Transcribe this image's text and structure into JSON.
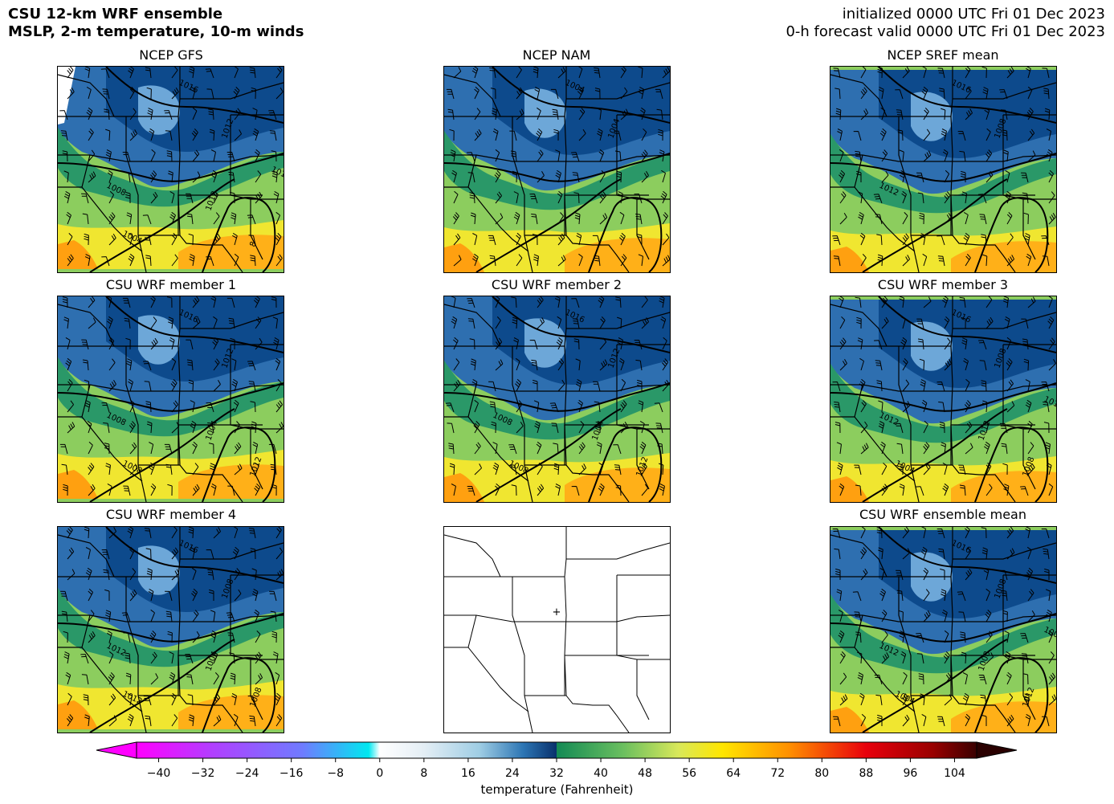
{
  "header": {
    "title_line1": "CSU 12-km WRF ensemble",
    "title_line2": "MSLP, 2-m temperature, 10-m winds",
    "init_line": "initialized 0000 UTC Fri 01 Dec 2023",
    "valid_line": "0-h forecast valid 0000 UTC Fri 01 Dec 2023"
  },
  "panels": [
    {
      "title": "NCEP GFS",
      "isobars": [
        "1016",
        "1012",
        "1008",
        "1012",
        "1004",
        "8",
        "1012"
      ]
    },
    {
      "title": "NCEP NAM",
      "isobars": [
        "1004",
        "1004"
      ]
    },
    {
      "title": "NCEP SREF mean",
      "isobars": [
        "1016",
        "1008",
        "1012"
      ]
    },
    {
      "title": "CSU WRF member 1",
      "isobars": [
        "1016",
        "1012",
        "1008",
        "1004",
        "1008",
        "1012"
      ]
    },
    {
      "title": "CSU WRF member 2",
      "isobars": [
        "1016",
        "1012",
        "1008",
        "1004",
        "1008",
        "1012"
      ]
    },
    {
      "title": "CSU WRF member 3",
      "isobars": [
        "1016",
        "1008",
        "1012",
        "1012",
        "1004",
        "1008",
        "1012"
      ]
    },
    {
      "title": "CSU WRF member 4",
      "isobars": [
        "1016",
        "1008",
        "1012",
        "1004",
        "1012",
        "1008"
      ]
    },
    {
      "title": "",
      "isobars": []
    },
    {
      "title": "CSU WRF ensemble mean",
      "isobars": [
        "1016",
        "1008",
        "1012",
        "1008",
        "1004",
        "1012",
        "1008"
      ]
    }
  ],
  "colorbar": {
    "label": "temperature (Fahrenheit)",
    "ticks": [
      "−40",
      "−32",
      "−24",
      "−16",
      "−8",
      "0",
      "8",
      "16",
      "24",
      "32",
      "40",
      "48",
      "56",
      "64",
      "72",
      "80",
      "88",
      "96",
      "104"
    ],
    "tick_values": [
      -40,
      -32,
      -24,
      -16,
      -8,
      0,
      8,
      16,
      24,
      32,
      40,
      48,
      56,
      64,
      72,
      80,
      88,
      96,
      104
    ],
    "range": [
      -44,
      108
    ],
    "colors": {
      "magenta": "#ff00ff",
      "purple": "#b040ff",
      "blue_violet": "#6f7bff",
      "cyan": "#00e8f0",
      "white": "#ffffff",
      "light_blue": "#9fcde4",
      "navy": "#08306b",
      "teal": "#138a55",
      "green": "#6abf5f",
      "yellow_green": "#d8e85a",
      "yellow": "#ffe600",
      "orange": "#ff9000",
      "red": "#e8000c",
      "dark_red": "#3a0000"
    }
  },
  "map_marker": "+"
}
